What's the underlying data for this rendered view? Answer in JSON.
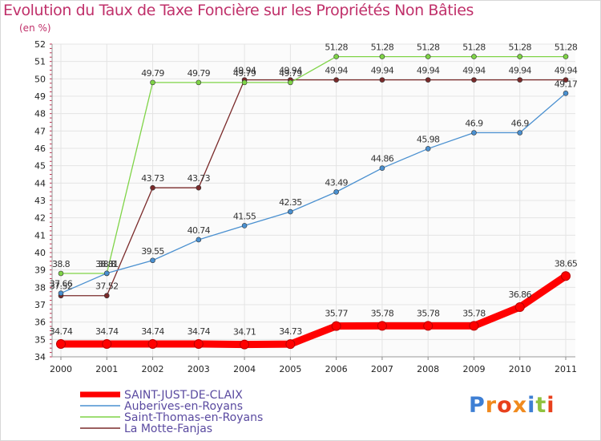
{
  "title": "Evolution du Taux de Taxe Foncière sur les Propriétés Non Bâties",
  "unit": "(en %)",
  "brand": {
    "text": "Proxiti",
    "colors": [
      "#3e7fd4",
      "#f08a1e",
      "#e8401c",
      "#f08a1e",
      "#3e7fd4",
      "#8fc23f",
      "#e8401c"
    ]
  },
  "chart_data": {
    "type": "line",
    "title": "Evolution du Taux de Taxe Foncière sur les Propriétés Non Bâties",
    "ylabel": "(en %)",
    "xlabel": "",
    "ylim": [
      34,
      52
    ],
    "yticks": [
      "34",
      "35",
      "36",
      "37",
      "38",
      "39",
      "40",
      "41",
      "42",
      "43",
      "44",
      "45",
      "46",
      "47",
      "48",
      "49",
      "50",
      "51",
      "52"
    ],
    "x": [
      "2000",
      "2001",
      "2002",
      "2003",
      "2004",
      "2005",
      "2006",
      "2007",
      "2008",
      "2009",
      "2010",
      "2011"
    ],
    "grid": true,
    "series": [
      {
        "name": "SAINT-JUST-DE-CLAIX",
        "color": "#ff0000",
        "bold": true,
        "values": [
          34.74,
          34.74,
          34.74,
          34.74,
          34.71,
          34.73,
          35.77,
          35.78,
          35.78,
          35.78,
          36.86,
          38.65
        ],
        "labels": [
          "34.74",
          "34.74",
          "34.74",
          "34.74",
          "34.71",
          "34.73",
          "35.77",
          "35.78",
          "35.78",
          "35.78",
          "36.86",
          "38.65"
        ]
      },
      {
        "name": "Auberives-en-Royans",
        "color": "#4a90d0",
        "bold": false,
        "values": [
          37.66,
          38.81,
          39.55,
          40.74,
          41.55,
          42.35,
          43.49,
          44.86,
          45.98,
          46.9,
          46.9,
          49.17
        ],
        "labels": [
          "37.66",
          "38.81",
          "39.55",
          "40.74",
          "41.55",
          "42.35",
          "43.49",
          "44.86",
          "45.98",
          "46.9",
          "46.9",
          "49.17"
        ]
      },
      {
        "name": "Saint-Thomas-en-Royans",
        "color": "#7fd447",
        "bold": false,
        "values": [
          38.8,
          38.8,
          49.79,
          49.79,
          49.79,
          49.79,
          51.28,
          51.28,
          51.28,
          51.28,
          51.28,
          51.28
        ],
        "labels": [
          "38.8",
          "38.8",
          "49.79",
          "49.79",
          "49.79",
          "49.79",
          "51.28",
          "51.28",
          "51.28",
          "51.28",
          "51.28",
          "51.28"
        ]
      },
      {
        "name": "La Motte-Fanjas",
        "color": "#7a2a2a",
        "bold": false,
        "values": [
          37.52,
          37.52,
          43.73,
          43.73,
          49.94,
          49.94,
          49.94,
          49.94,
          49.94,
          49.94,
          49.94,
          49.94
        ],
        "labels": [
          "37.52",
          "37.52",
          "43.73",
          "43.73",
          "49.94",
          "49.94",
          "49.94",
          "49.94",
          "49.94",
          "49.94",
          "49.94",
          "49.94"
        ]
      }
    ]
  }
}
